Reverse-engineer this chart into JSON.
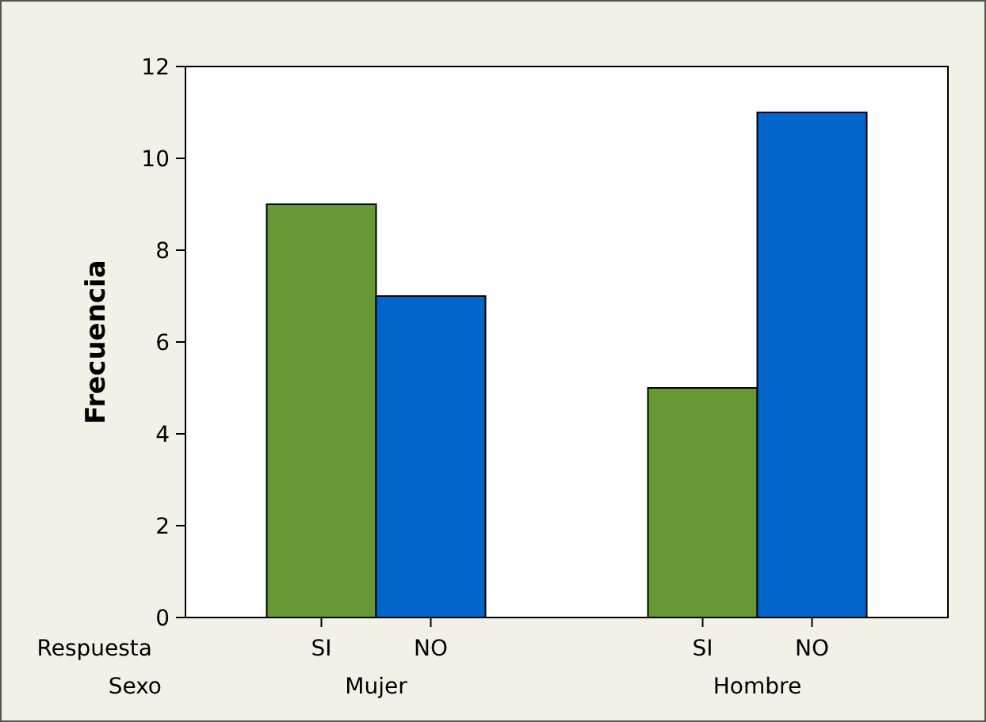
{
  "chart_data": {
    "type": "bar",
    "ylabel": "Frecuencia",
    "categories": [
      "Mujer",
      "Hombre"
    ],
    "series": [
      {
        "name": "SI",
        "color": "#669933",
        "values": [
          9,
          5
        ]
      },
      {
        "name": "NO",
        "color": "#0066cc",
        "values": [
          7,
          11
        ]
      }
    ],
    "ylim": [
      0,
      12
    ],
    "yticks": [
      0,
      2,
      4,
      6,
      8,
      10,
      12
    ],
    "grid": false,
    "annotations": [
      "Respuesta",
      "Sexo"
    ]
  }
}
